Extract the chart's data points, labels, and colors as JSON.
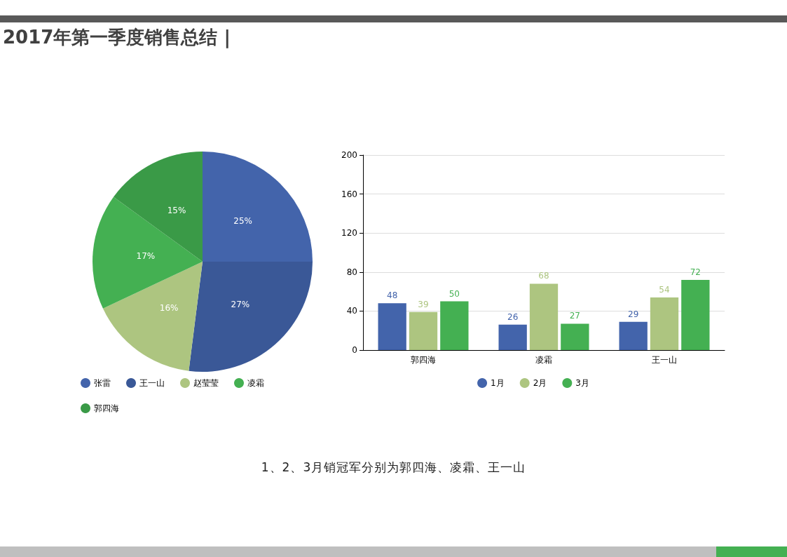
{
  "chart_data": [
    {
      "type": "pie",
      "title": "2017年第一季度销售总结 |",
      "categories": [
        "张雷",
        "王一山",
        "赵莹莹",
        "凌霜",
        "郭四海"
      ],
      "values": [
        25,
        27,
        16,
        17,
        15
      ],
      "colors": [
        "#4364ab",
        "#3a5897",
        "#adc580",
        "#44b052",
        "#3a9a47"
      ],
      "value_labels": [
        "25%",
        "27%",
        "16%",
        "17%",
        "15%"
      ],
      "legend": "bottom"
    },
    {
      "type": "bar",
      "categories": [
        "郭四海",
        "凌霜",
        "王一山"
      ],
      "series": [
        {
          "name": "1月",
          "color": "#4364ab",
          "values": [
            48,
            26,
            29
          ]
        },
        {
          "name": "2月",
          "color": "#adc580",
          "values": [
            39,
            68,
            54
          ]
        },
        {
          "name": "3月",
          "color": "#44b052",
          "values": [
            50,
            27,
            72
          ]
        }
      ],
      "ylim": [
        0,
        200
      ],
      "yticks": [
        0,
        40,
        80,
        120,
        160,
        200
      ],
      "grid": "y",
      "legend": "bottom",
      "data_labels": true,
      "annotations": [
        "1、2、3月销冠军分别为郭四海、凌霜、王一山"
      ]
    }
  ]
}
